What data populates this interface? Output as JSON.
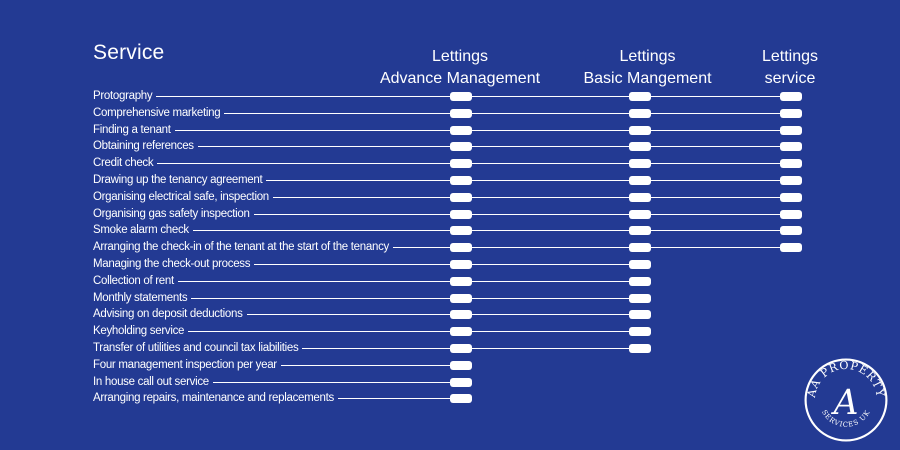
{
  "header": {
    "service": "Service",
    "columns": [
      {
        "line1": "Lettings",
        "line2": "Advance Management"
      },
      {
        "line1": "Lettings",
        "line2": "Basic Mangement"
      },
      {
        "line1": "Lettings",
        "line2": "service"
      }
    ]
  },
  "services": [
    {
      "label": "Protography",
      "included": [
        true,
        true,
        true
      ]
    },
    {
      "label": "Comprehensive marketing",
      "included": [
        true,
        true,
        true
      ]
    },
    {
      "label": "Finding a tenant",
      "included": [
        true,
        true,
        true
      ]
    },
    {
      "label": "Obtaining references",
      "included": [
        true,
        true,
        true
      ]
    },
    {
      "label": "Credit check",
      "included": [
        true,
        true,
        true
      ]
    },
    {
      "label": "Drawing up the tenancy agreement",
      "included": [
        true,
        true,
        true
      ]
    },
    {
      "label": "Organising electrical safe, inspection",
      "included": [
        true,
        true,
        true
      ]
    },
    {
      "label": "Organising gas safety inspection",
      "included": [
        true,
        true,
        true
      ]
    },
    {
      "label": "Smoke alarm check",
      "included": [
        true,
        true,
        true
      ]
    },
    {
      "label": "Arranging the check-in of the tenant at the start of the tenancy",
      "included": [
        true,
        true,
        true
      ]
    },
    {
      "label": "Managing the check-out process",
      "included": [
        true,
        true,
        false
      ]
    },
    {
      "label": "Collection of rent",
      "included": [
        true,
        true,
        false
      ]
    },
    {
      "label": "Monthly statements",
      "included": [
        true,
        true,
        false
      ]
    },
    {
      "label": "Advising on deposit deductions",
      "included": [
        true,
        true,
        false
      ]
    },
    {
      "label": "Keyholding service",
      "included": [
        true,
        true,
        false
      ]
    },
    {
      "label": "Transfer of utilities and council tax liabilities",
      "included": [
        true,
        true,
        false
      ]
    },
    {
      "label": "Four management inspection per year",
      "included": [
        true,
        false,
        false
      ]
    },
    {
      "label": "In house call out service",
      "included": [
        true,
        false,
        false
      ]
    },
    {
      "label": "Arranging repairs, maintenance and replacements",
      "included": [
        true,
        false,
        false
      ]
    }
  ],
  "logo": {
    "text_top": "AA PROPERTY",
    "text_bottom": "SERVICES UK",
    "monogram": "A"
  },
  "colors": {
    "background": "#233a93",
    "foreground": "#ffffff"
  }
}
